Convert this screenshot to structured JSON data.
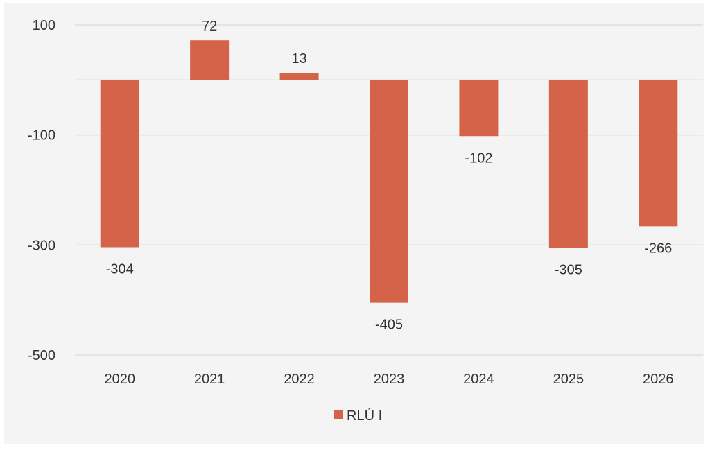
{
  "chart_data": {
    "type": "bar",
    "categories": [
      "2020",
      "2021",
      "2022",
      "2023",
      "2024",
      "2025",
      "2026"
    ],
    "series": [
      {
        "name": "RLÚ I",
        "color": "#d4634a",
        "values": [
          -304,
          72,
          13,
          -405,
          -102,
          -305,
          -266
        ],
        "labels": [
          "-304",
          "72",
          "13",
          "-405",
          "-102",
          "-305",
          "-266"
        ]
      }
    ],
    "title": "",
    "xlabel": "",
    "ylabel": "",
    "ylim": [
      -500,
      100
    ],
    "yticks": [
      100,
      -100,
      -300,
      -500
    ],
    "ytick_labels": [
      "100",
      "-100",
      "-300",
      "-500"
    ],
    "gridlines": [
      100,
      0,
      -100,
      -300,
      -500
    ],
    "grid": true,
    "legend": "bottom-center"
  }
}
